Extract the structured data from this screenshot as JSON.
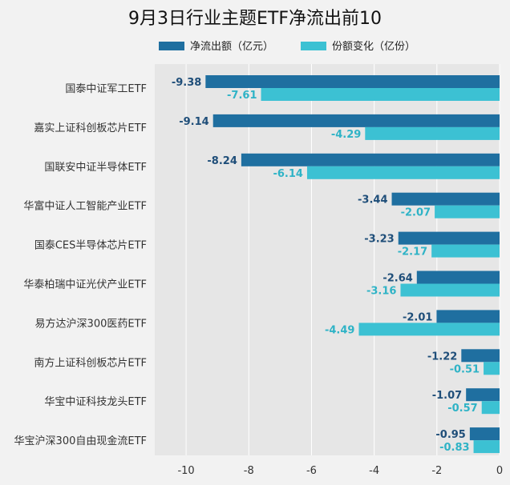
{
  "chart_data": {
    "type": "bar",
    "orientation": "horizontal",
    "title": "9月3日行业主题ETF净流出前10",
    "categories": [
      "国泰中证军工ETF",
      "嘉实上证科创板芯片ETF",
      "国联安中证半导体ETF",
      "华富中证人工智能产业ETF",
      "国泰CES半导体芯片ETF",
      "华泰柏瑞中证光伏产业ETF",
      "易方达沪深300医药ETF",
      "南方上证科创板芯片ETF",
      "华宝中证科技龙头ETF",
      "华宝沪深300自由现金流ETF"
    ],
    "series": [
      {
        "name": "净流出额（亿元）",
        "color": "#1f6fa0",
        "values": [
          -9.38,
          -9.14,
          -8.24,
          -3.44,
          -3.23,
          -2.64,
          -2.01,
          -1.22,
          -1.07,
          -0.95
        ],
        "labels": [
          "-9.38",
          "-9.14",
          "-8.24",
          "-3.44",
          "-3.23",
          "-2.64",
          "-2.01",
          "-1.22",
          "-1.07",
          "-0.95"
        ]
      },
      {
        "name": "份额变化（亿份）",
        "color": "#3cc1d3",
        "values": [
          -7.61,
          -4.29,
          -6.14,
          -2.07,
          -2.17,
          -3.16,
          -4.49,
          -0.51,
          -0.57,
          -0.83
        ],
        "labels": [
          "-7.61",
          "-4.29",
          "-6.14",
          "-2.07",
          "-2.17",
          "-3.16",
          "-4.49",
          "-0.51",
          "-0.57",
          "-0.83"
        ]
      }
    ],
    "xlim": [
      -11,
      0
    ],
    "xticks": [
      -10,
      -8,
      -6,
      -4,
      -2,
      0
    ],
    "xtick_labels": [
      "-10",
      "-8",
      "-6",
      "-4",
      "-2",
      "0"
    ],
    "grid": true,
    "legend_position": "top",
    "colors": {
      "background": "#f2f2f2",
      "plot_background": "#e6e6e6",
      "grid": "#ffffff"
    }
  }
}
